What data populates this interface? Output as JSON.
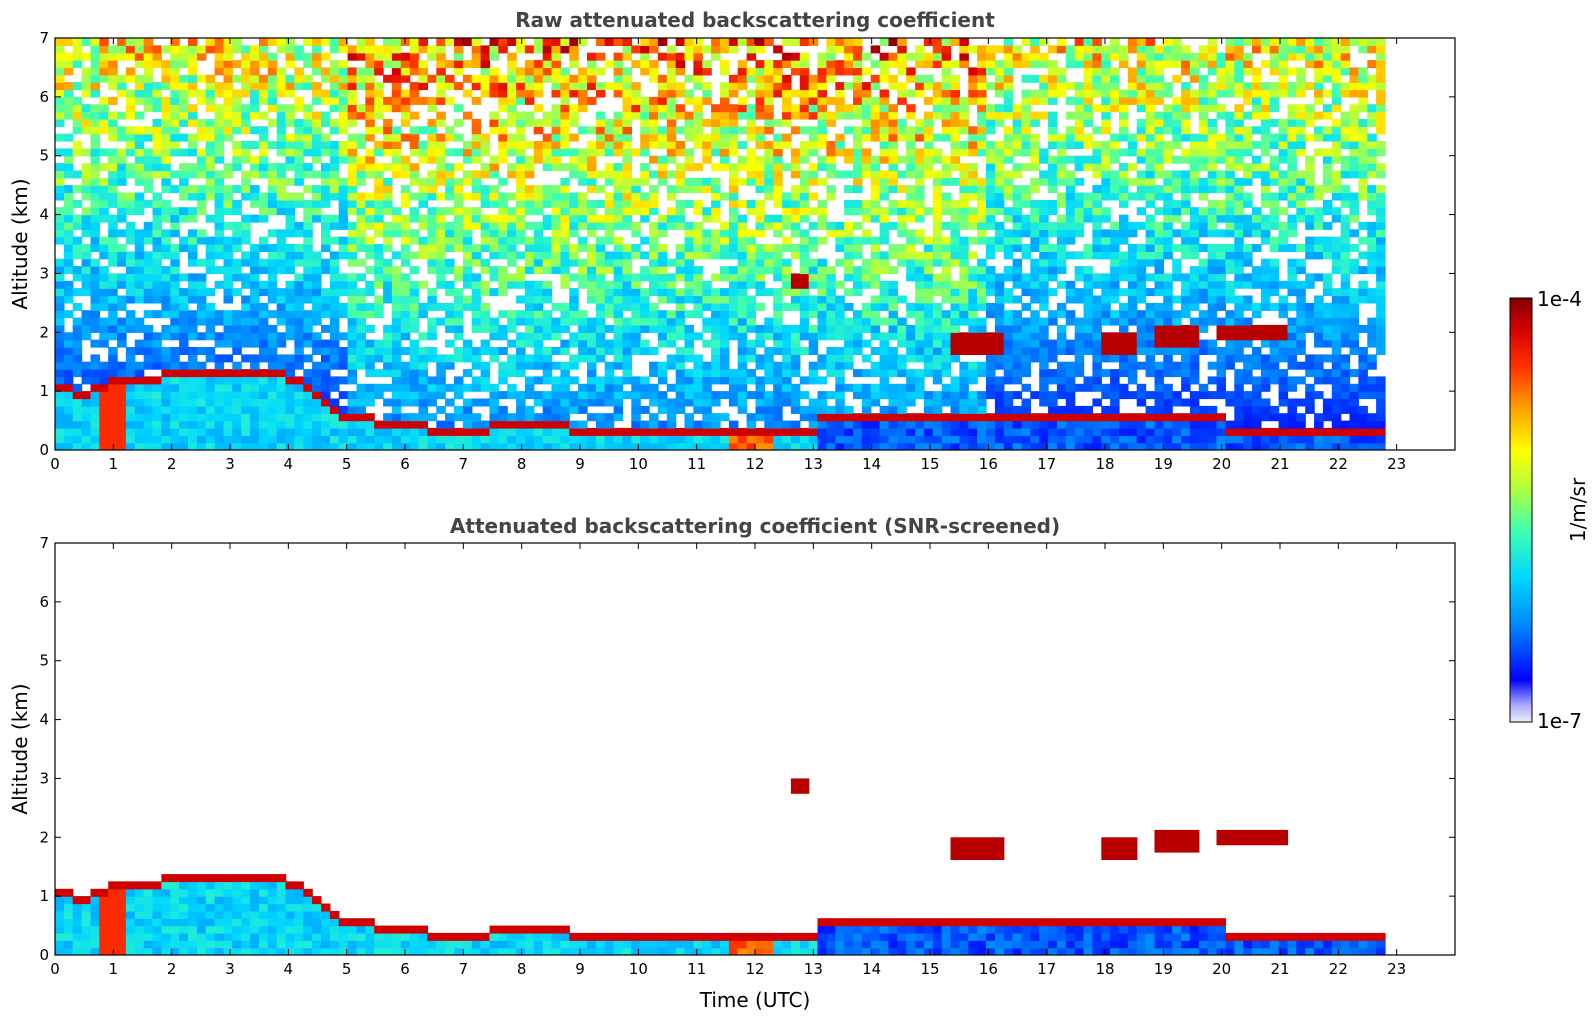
{
  "chart_data": [
    {
      "type": "heatmap",
      "title": "Raw attenuated backscattering coefficient",
      "xlabel": "",
      "ylabel": "Altitude (km)",
      "xlim": [
        0,
        24
      ],
      "ylim": [
        0,
        7
      ],
      "x_ticks": [
        "0",
        "1",
        "2",
        "3",
        "4",
        "5",
        "6",
        "7",
        "8",
        "9",
        "10",
        "11",
        "12",
        "13",
        "14",
        "15",
        "16",
        "17",
        "18",
        "19",
        "20",
        "21",
        "22",
        "23"
      ],
      "y_ticks": [
        "0",
        "1",
        "2",
        "3",
        "4",
        "5",
        "6",
        "7"
      ],
      "data_end_time": 22.8,
      "screened": false,
      "boundary_layer_top_km": [
        [
          0,
          1.0
        ],
        [
          0.5,
          0.9
        ],
        [
          1,
          1.1
        ],
        [
          2,
          1.2
        ],
        [
          3,
          1.2
        ],
        [
          4,
          1.2
        ],
        [
          4.5,
          0.9
        ],
        [
          5,
          0.5
        ],
        [
          6,
          0.35
        ],
        [
          7,
          0.25
        ],
        [
          8,
          0.4
        ],
        [
          9,
          0.3
        ],
        [
          10,
          0.25
        ],
        [
          11,
          0.2
        ],
        [
          12,
          0.3
        ],
        [
          13,
          0.3
        ]
      ],
      "cloud_layers": [
        {
          "t0": 17.9,
          "t1": 18.6,
          "alt_km": 1.8
        },
        {
          "t0": 18.9,
          "t1": 19.6,
          "alt_km": 1.95
        },
        {
          "t0": 19.9,
          "t1": 21.2,
          "alt_km": 2.0
        },
        {
          "t0": 15.3,
          "t1": 16.3,
          "alt_km": 1.8
        },
        {
          "t0": 12.6,
          "t1": 12.9,
          "alt_km": 2.9
        }
      ]
    },
    {
      "type": "heatmap",
      "title": "Attenuated backscattering coefficient (SNR-screened)",
      "xlabel": "Time (UTC)",
      "ylabel": "Altitude (km)",
      "xlim": [
        0,
        24
      ],
      "ylim": [
        0,
        7
      ],
      "x_ticks": [
        "0",
        "1",
        "2",
        "3",
        "4",
        "5",
        "6",
        "7",
        "8",
        "9",
        "10",
        "11",
        "12",
        "13",
        "14",
        "15",
        "16",
        "17",
        "18",
        "19",
        "20",
        "21",
        "22",
        "23"
      ],
      "y_ticks": [
        "0",
        "1",
        "2",
        "3",
        "4",
        "5",
        "6",
        "7"
      ],
      "data_end_time": 22.8,
      "screened": true
    }
  ],
  "colorbar": {
    "max_label": "1e-4",
    "min_label": "1e-7",
    "unit_label": "1/m/sr",
    "colormap": [
      "#eeeeff",
      "#ccccff",
      "#9999ff",
      "#0000ff",
      "#0080ff",
      "#00c8ff",
      "#00ffd0",
      "#80ff80",
      "#d0ff40",
      "#ffff00",
      "#ffc000",
      "#ff8000",
      "#ff3000",
      "#d00000",
      "#800000"
    ]
  }
}
